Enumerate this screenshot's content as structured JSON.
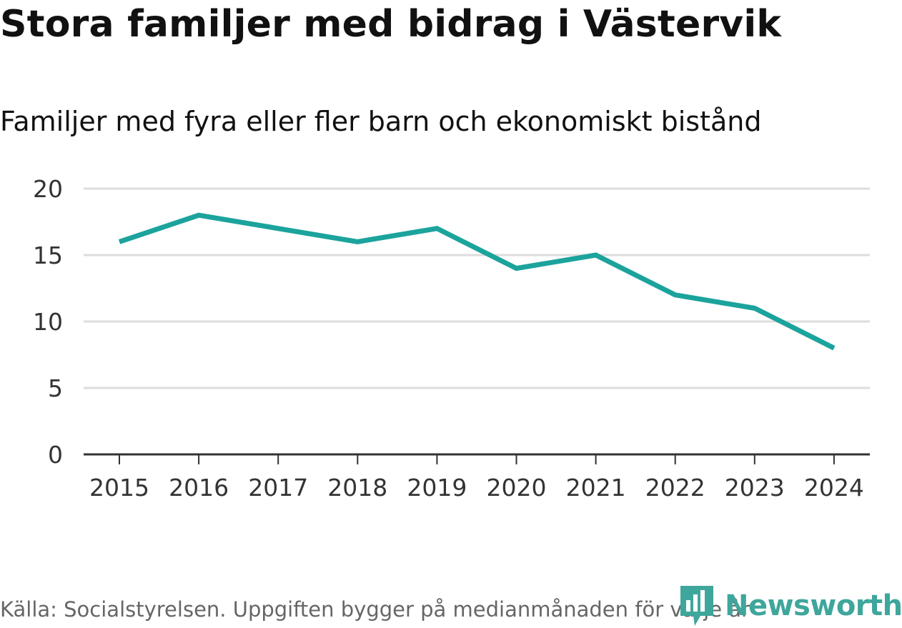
{
  "title": "Stora familjer med bidrag i Västervik",
  "subtitle": "Familjer med fyra eller fler barn och ekonomiskt bistånd",
  "source": "Källa: Socialstyrelsen. Uppgiften bygger på medianmånaden för varje år",
  "logo": {
    "name": "Newsworthy",
    "icon": "newsworthy-logo-icon"
  },
  "colors": {
    "line": "#1ba39c",
    "grid": "#dddddd",
    "axis": "#333333",
    "brand": "#3fa69c"
  },
  "chart_data": {
    "type": "line",
    "title": "Stora familjer med bidrag i Västervik",
    "subtitle": "Familjer med fyra eller fler barn och ekonomiskt bistånd",
    "xlabel": "",
    "ylabel": "",
    "categories": [
      "2015",
      "2016",
      "2017",
      "2018",
      "2019",
      "2020",
      "2021",
      "2022",
      "2023",
      "2024"
    ],
    "series": [
      {
        "name": "Familjer med fyra eller fler barn och ekonomiskt bistånd",
        "values": [
          16,
          18,
          17,
          16,
          17,
          14,
          15,
          12,
          11,
          8
        ]
      }
    ],
    "ylim": [
      0,
      20
    ],
    "yticks": [
      "0",
      "5",
      "10",
      "15",
      "20"
    ],
    "grid": true
  }
}
